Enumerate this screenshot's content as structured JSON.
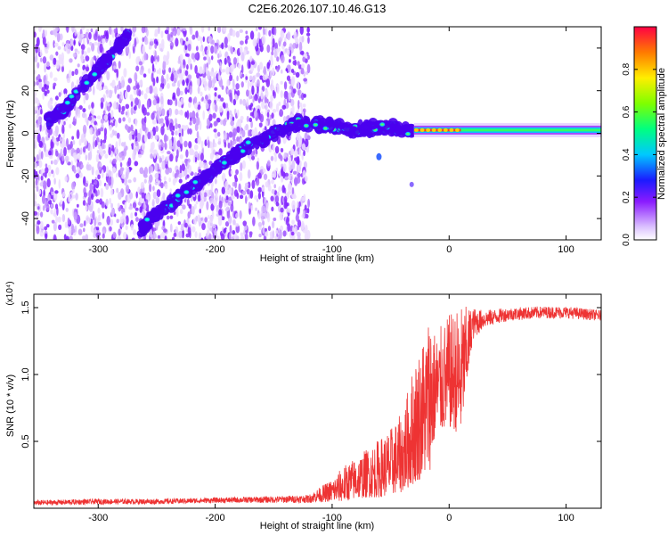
{
  "title": "C2E6.2026.107.10.46.G13",
  "chart_data": [
    {
      "type": "heatmap",
      "title": "C2E6.2026.107.10.46.G13",
      "xlabel": "Height of straight line (km)",
      "ylabel": "Frequency (Hz)",
      "xlim": [
        -355,
        130
      ],
      "ylim": [
        -50,
        50
      ],
      "xticks": [
        -300,
        -200,
        -100,
        0,
        100
      ],
      "xtick_labels": [
        "-300",
        "-200",
        "-100",
        "0",
        "100"
      ],
      "yticks": [
        -40,
        -20,
        0,
        20,
        40
      ],
      "ytick_labels": [
        "-40",
        "-20",
        "0",
        "20",
        "40"
      ],
      "colorbar": {
        "label": "Normalized spectral amplitude",
        "range": [
          0,
          1
        ],
        "ticks": [
          0.0,
          0.2,
          0.4,
          0.6,
          0.8
        ],
        "tick_labels": [
          "0.0",
          "0.2",
          "0.4",
          "0.6",
          "0.8"
        ]
      },
      "features": {
        "noise_region_x": [
          -355,
          -120
        ],
        "track_lower": [
          [
            -265,
            -46
          ],
          [
            -250,
            -38
          ],
          [
            -230,
            -30
          ],
          [
            -210,
            -21
          ],
          [
            -190,
            -13
          ],
          [
            -175,
            -7
          ],
          [
            -160,
            -3
          ],
          [
            -145,
            1
          ],
          [
            -130,
            5
          ],
          [
            -110,
            4
          ],
          [
            -80,
            2
          ],
          [
            -50,
            3
          ],
          [
            -30,
            1
          ]
        ],
        "track_upper": [
          [
            -345,
            5
          ],
          [
            -330,
            11
          ],
          [
            -315,
            20
          ],
          [
            -300,
            30
          ],
          [
            -285,
            39
          ],
          [
            -275,
            46
          ]
        ],
        "carrier_x": [
          -30,
          130
        ],
        "carrier_freq": 1.5
      }
    },
    {
      "type": "line",
      "xlabel": "Height of straight line (km)",
      "ylabel": "SNR (10 * v/v)",
      "scale_note": "(x10⁴)",
      "xlim": [
        -355,
        130
      ],
      "ylim": [
        0,
        1.6
      ],
      "xticks": [
        -300,
        -200,
        -100,
        0,
        100
      ],
      "xtick_labels": [
        "-300",
        "-200",
        "-100",
        "0",
        "100"
      ],
      "yticks": [
        0.5,
        1.0,
        1.5
      ],
      "ytick_labels": [
        "0.5",
        "1.0",
        "1.5"
      ],
      "series": [
        {
          "name": "SNR",
          "color": "#ee3333",
          "envelope": [
            [
              -355,
              0.02,
              0.06
            ],
            [
              -300,
              0.03,
              0.07
            ],
            [
              -250,
              0.03,
              0.07
            ],
            [
              -200,
              0.04,
              0.08
            ],
            [
              -150,
              0.04,
              0.09
            ],
            [
              -120,
              0.04,
              0.1
            ],
            [
              -100,
              0.05,
              0.22
            ],
            [
              -90,
              0.05,
              0.32
            ],
            [
              -80,
              0.07,
              0.38
            ],
            [
              -70,
              0.08,
              0.45
            ],
            [
              -60,
              0.08,
              0.52
            ],
            [
              -50,
              0.1,
              0.6
            ],
            [
              -40,
              0.12,
              0.72
            ],
            [
              -30,
              0.18,
              1.1
            ],
            [
              -20,
              0.25,
              1.35
            ],
            [
              -15,
              0.3,
              1.58
            ],
            [
              -12,
              0.55,
              1.3
            ],
            [
              0,
              0.6,
              1.45
            ],
            [
              10,
              0.55,
              1.52
            ],
            [
              20,
              1.25,
              1.5
            ],
            [
              30,
              1.35,
              1.48
            ],
            [
              50,
              1.4,
              1.5
            ],
            [
              80,
              1.42,
              1.51
            ],
            [
              100,
              1.42,
              1.51
            ],
            [
              130,
              1.4,
              1.48
            ]
          ]
        }
      ]
    }
  ]
}
